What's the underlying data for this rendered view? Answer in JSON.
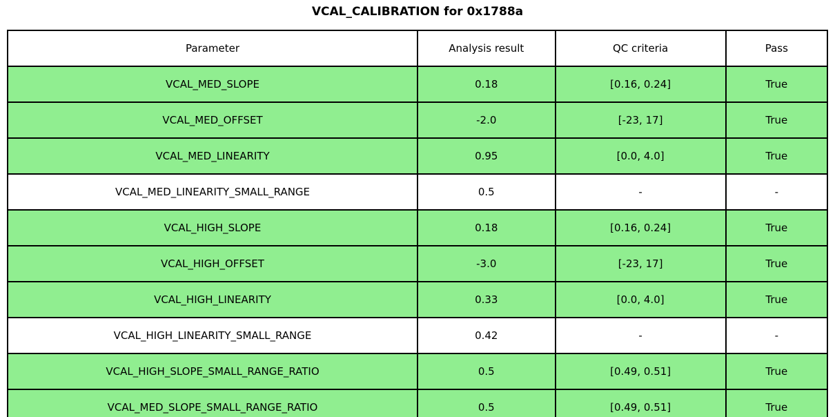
{
  "title": "VCAL_CALIBRATION for 0x1788a",
  "colors": {
    "pass_row_bg": "#90ee90",
    "neutral_row_bg": "#ffffff",
    "border": "#000000",
    "text": "#000000"
  },
  "chart_data": {
    "type": "table",
    "title": "VCAL_CALIBRATION for 0x1788a",
    "columns": [
      "Parameter",
      "Analysis result",
      "QC criteria",
      "Pass"
    ],
    "rows": [
      {
        "parameter": "VCAL_MED_SLOPE",
        "analysis_result": "0.18",
        "qc_criteria": "[0.16, 0.24]",
        "pass": "True",
        "highlight": true
      },
      {
        "parameter": "VCAL_MED_OFFSET",
        "analysis_result": "-2.0",
        "qc_criteria": "[-23, 17]",
        "pass": "True",
        "highlight": true
      },
      {
        "parameter": "VCAL_MED_LINEARITY",
        "analysis_result": "0.95",
        "qc_criteria": "[0.0, 4.0]",
        "pass": "True",
        "highlight": true
      },
      {
        "parameter": "VCAL_MED_LINEARITY_SMALL_RANGE",
        "analysis_result": "0.5",
        "qc_criteria": "-",
        "pass": "-",
        "highlight": false
      },
      {
        "parameter": "VCAL_HIGH_SLOPE",
        "analysis_result": "0.18",
        "qc_criteria": "[0.16, 0.24]",
        "pass": "True",
        "highlight": true
      },
      {
        "parameter": "VCAL_HIGH_OFFSET",
        "analysis_result": "-3.0",
        "qc_criteria": "[-23, 17]",
        "pass": "True",
        "highlight": true
      },
      {
        "parameter": "VCAL_HIGH_LINEARITY",
        "analysis_result": "0.33",
        "qc_criteria": "[0.0, 4.0]",
        "pass": "True",
        "highlight": true
      },
      {
        "parameter": "VCAL_HIGH_LINEARITY_SMALL_RANGE",
        "analysis_result": "0.42",
        "qc_criteria": "-",
        "pass": "-",
        "highlight": false
      },
      {
        "parameter": "VCAL_HIGH_SLOPE_SMALL_RANGE_RATIO",
        "analysis_result": "0.5",
        "qc_criteria": "[0.49, 0.51]",
        "pass": "True",
        "highlight": true
      },
      {
        "parameter": "VCAL_MED_SLOPE_SMALL_RANGE_RATIO",
        "analysis_result": "0.5",
        "qc_criteria": "[0.49, 0.51]",
        "pass": "True",
        "highlight": true
      }
    ]
  }
}
